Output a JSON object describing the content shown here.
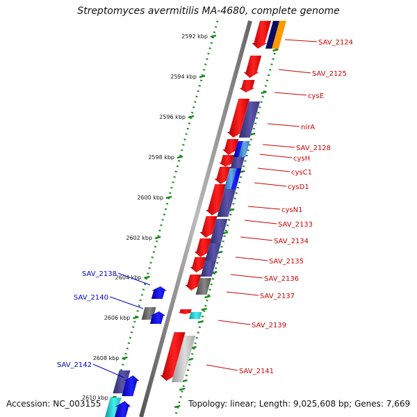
{
  "title": "Streptomyces avermitilis MA-4680, complete genome",
  "footer": {
    "accession": "Accession: NC_003155",
    "summary": "Topology: linear; Length: 9,025,608 bp; Genes: 7,669"
  },
  "colors": {
    "backbone": "#8a8a8a",
    "guide": "#1f8a1f",
    "label_forward": "#cc0000",
    "label_reverse": "#0000cc",
    "red": "#ff1a1a",
    "navy": "#4b4699",
    "blue": "#1111dd",
    "lightblue": "#5599dd",
    "gray": "#777777",
    "lightgray": "#bbbbbb",
    "cyan": "#22dddd",
    "orange": "#ff9900",
    "darknavy": "#0a0a66"
  },
  "scale": {
    "unit": "kbp",
    "ticks": [
      {
        "label": "2592 kbp"
      },
      {
        "label": "2594 kbp"
      },
      {
        "label": "2596 kbp"
      },
      {
        "label": "2598 kbp"
      },
      {
        "label": "2600 kbp"
      },
      {
        "label": "2602 kbp"
      },
      {
        "label": "2604 kbp"
      },
      {
        "label": "2606 kbp"
      },
      {
        "label": "2608 kbp"
      },
      {
        "label": "2610 kbp"
      }
    ]
  },
  "genes": [
    {
      "name": "SAV_2124",
      "strand": "forward"
    },
    {
      "name": "SAV_2125",
      "strand": "forward"
    },
    {
      "name": "cysE",
      "strand": "forward"
    },
    {
      "name": "nirA",
      "strand": "forward"
    },
    {
      "name": "SAV_2128",
      "strand": "forward"
    },
    {
      "name": "cysH",
      "strand": "forward"
    },
    {
      "name": "cysC1",
      "strand": "forward"
    },
    {
      "name": "cysD1",
      "strand": "forward"
    },
    {
      "name": "cysN1",
      "strand": "forward"
    },
    {
      "name": "SAV_2133",
      "strand": "forward"
    },
    {
      "name": "SAV_2134",
      "strand": "forward"
    },
    {
      "name": "SAV_2135",
      "strand": "forward"
    },
    {
      "name": "SAV_2136",
      "strand": "forward"
    },
    {
      "name": "SAV_2137",
      "strand": "forward"
    },
    {
      "name": "SAV_2139",
      "strand": "forward"
    },
    {
      "name": "SAV_2141",
      "strand": "forward"
    },
    {
      "name": "SAV_2138",
      "strand": "reverse"
    },
    {
      "name": "SAV_2140",
      "strand": "reverse"
    },
    {
      "name": "SAV_2142",
      "strand": "reverse"
    }
  ]
}
